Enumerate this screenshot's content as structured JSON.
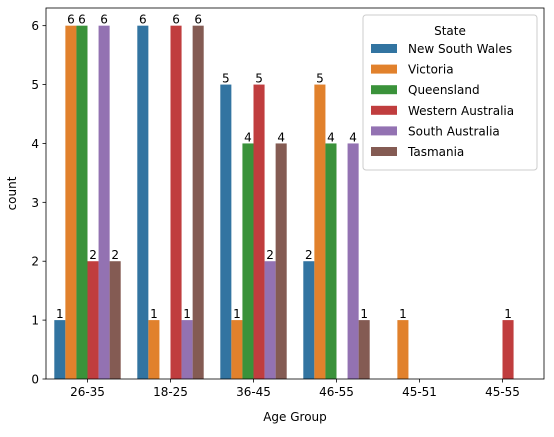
{
  "chart_data": {
    "type": "bar",
    "xlabel": "Age Group",
    "ylabel": "count",
    "ylim": [
      0,
      6.3
    ],
    "yticks": [
      0,
      1,
      2,
      3,
      4,
      5,
      6
    ],
    "categories": [
      "26-35",
      "18-25",
      "36-45",
      "46-55",
      "45-51",
      "45-55"
    ],
    "legend": {
      "title": "State",
      "placement": "top-right"
    },
    "series": [
      {
        "name": "New South Wales",
        "color": "#3274a1",
        "values": [
          1,
          6,
          5,
          2,
          null,
          null
        ]
      },
      {
        "name": "Victoria",
        "color": "#e1812c",
        "values": [
          6,
          1,
          1,
          5,
          1,
          null
        ]
      },
      {
        "name": "Queensland",
        "color": "#3a923a",
        "values": [
          6,
          null,
          4,
          4,
          null,
          null
        ]
      },
      {
        "name": "Western Australia",
        "color": "#c03d3e",
        "values": [
          2,
          6,
          5,
          null,
          null,
          1
        ]
      },
      {
        "name": "South Australia",
        "color": "#9372b2",
        "values": [
          6,
          1,
          2,
          4,
          null,
          null
        ]
      },
      {
        "name": "Tasmania",
        "color": "#845b53",
        "values": [
          2,
          6,
          4,
          1,
          null,
          null
        ]
      }
    ]
  }
}
